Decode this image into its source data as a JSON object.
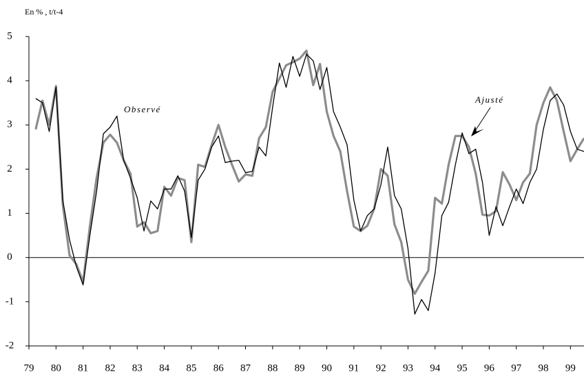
{
  "chart_data": {
    "type": "line",
    "y_axis_label": "En % , t/t-4",
    "x": [
      79.25,
      79.5,
      79.75,
      80.0,
      80.25,
      80.5,
      80.75,
      81.0,
      81.25,
      81.5,
      81.75,
      82.0,
      82.25,
      82.5,
      82.75,
      83.0,
      83.25,
      83.5,
      83.75,
      84.0,
      84.25,
      84.5,
      84.75,
      85.0,
      85.25,
      85.5,
      85.75,
      86.0,
      86.25,
      86.5,
      86.75,
      87.0,
      87.25,
      87.5,
      87.75,
      88.0,
      88.25,
      88.5,
      88.75,
      89.0,
      89.25,
      89.5,
      89.75,
      90.0,
      90.25,
      90.5,
      90.75,
      91.0,
      91.25,
      91.5,
      91.75,
      92.0,
      92.25,
      92.5,
      92.75,
      93.0,
      93.25,
      93.5,
      93.75,
      94.0,
      94.25,
      94.5,
      94.75,
      95.0,
      95.25,
      95.5,
      95.75,
      96.0,
      96.25,
      96.5,
      96.75,
      97.0,
      97.25,
      97.5,
      97.75,
      98.0,
      98.25,
      98.5,
      98.75,
      99.0,
      99.25,
      99.5
    ],
    "series": [
      {
        "name": "Observé",
        "color": "#000000",
        "width": 1.3,
        "values": [
          3.6,
          3.5,
          2.85,
          3.85,
          1.3,
          0.4,
          -0.2,
          -0.62,
          0.5,
          1.5,
          2.8,
          2.95,
          3.2,
          2.2,
          1.8,
          1.35,
          0.6,
          1.28,
          1.1,
          1.55,
          1.55,
          1.85,
          1.5,
          0.45,
          1.75,
          2.0,
          2.5,
          2.75,
          2.15,
          2.18,
          2.2,
          1.92,
          1.95,
          2.5,
          2.3,
          3.4,
          4.4,
          3.85,
          4.55,
          4.1,
          4.6,
          4.45,
          3.8,
          4.3,
          3.3,
          2.95,
          2.55,
          1.3,
          0.6,
          0.95,
          1.1,
          1.65,
          2.5,
          1.4,
          1.1,
          0.2,
          -1.28,
          -0.95,
          -1.2,
          -0.35,
          0.95,
          1.25,
          2.1,
          2.82,
          2.35,
          2.45,
          1.7,
          0.5,
          1.15,
          0.72,
          1.15,
          1.55,
          1.22,
          1.7,
          2.0,
          2.9,
          3.55,
          3.7,
          3.45,
          2.85,
          2.45,
          2.4
        ]
      },
      {
        "name": "Ajusté",
        "color": "#8c8c8c",
        "width": 3.2,
        "values": [
          2.9,
          3.55,
          3.0,
          3.88,
          1.2,
          0.05,
          -0.15,
          -0.55,
          0.7,
          1.8,
          2.6,
          2.78,
          2.6,
          2.2,
          1.9,
          0.7,
          0.8,
          0.55,
          0.6,
          1.6,
          1.4,
          1.8,
          1.75,
          0.35,
          2.1,
          2.05,
          2.55,
          3.0,
          2.5,
          2.1,
          1.72,
          1.88,
          1.85,
          2.7,
          2.95,
          3.75,
          4.05,
          4.35,
          4.42,
          4.5,
          4.68,
          3.9,
          4.38,
          3.3,
          2.75,
          2.4,
          1.5,
          0.7,
          0.6,
          0.72,
          1.1,
          2.0,
          1.85,
          0.75,
          0.35,
          -0.5,
          -0.82,
          -0.55,
          -0.3,
          1.35,
          1.22,
          2.1,
          2.75,
          2.75,
          2.5,
          1.9,
          0.97,
          0.95,
          1.05,
          1.93,
          1.65,
          1.3,
          1.7,
          1.9,
          3.0,
          3.5,
          3.85,
          3.55,
          2.85,
          2.18,
          2.45,
          2.7
        ]
      }
    ],
    "xlim": [
      79,
      99.5
    ],
    "xticks": [
      79,
      80,
      81,
      82,
      83,
      84,
      85,
      86,
      87,
      88,
      89,
      90,
      91,
      92,
      93,
      94,
      95,
      96,
      97,
      98,
      99
    ],
    "ylim": [
      -2,
      5
    ],
    "yticks": [
      -2,
      -1,
      0,
      1,
      2,
      3,
      4,
      5
    ],
    "zero_line": true
  }
}
